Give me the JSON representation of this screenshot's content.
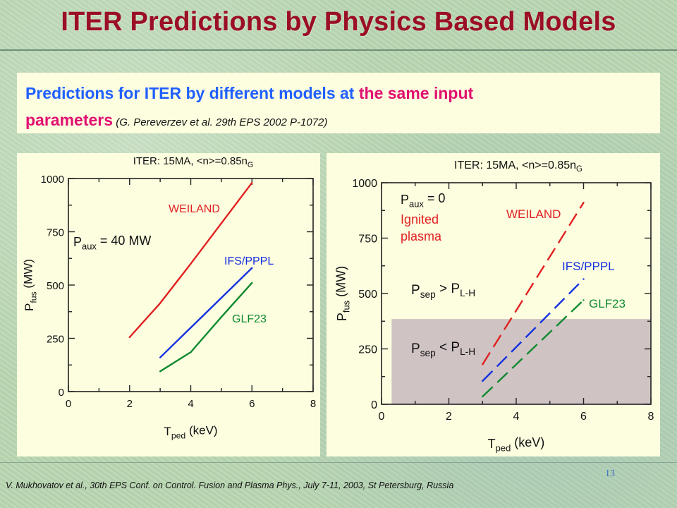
{
  "slide": {
    "title": "ITER Predictions by Physics Based Models",
    "subtitle": {
      "part1": "Predictions for ITER by different models at ",
      "part2": "the same input",
      "part3": "parameters",
      "reference": " (G. Pereverzev et al. 29th EPS 2002 P-1072)"
    },
    "page_number": "13",
    "footer": "V. Mukhovatov et al., 30th EPS Conf. on Control. Fusion and Plasma Phys., July 7-11, 2003, St Petersburg, Russia"
  },
  "chart_data": [
    {
      "type": "line",
      "title": "ITER: 15MA, <n>=0.85n_G",
      "xlabel": "T_ped (keV)",
      "ylabel": "P_fus (MW)",
      "xlim": [
        0,
        8
      ],
      "ylim": [
        0,
        1000
      ],
      "xticks": [
        "0",
        "2",
        "4",
        "6",
        "8"
      ],
      "yticks": [
        "0",
        "250",
        "500",
        "750",
        "1000"
      ],
      "annotations": [
        "P_aux = 40 MW"
      ],
      "series": [
        {
          "name": "WEILAND",
          "color": "#e02020",
          "dashed": false,
          "x": [
            2,
            3,
            4,
            5,
            6
          ],
          "y": [
            255,
            415,
            600,
            790,
            980
          ]
        },
        {
          "name": "IFS/PPPL",
          "color": "#1530e0",
          "dashed": false,
          "x": [
            3,
            4,
            5,
            6
          ],
          "y": [
            160,
            300,
            440,
            580
          ]
        },
        {
          "name": "GLF23",
          "color": "#108a30",
          "dashed": false,
          "x": [
            3,
            4,
            5,
            6
          ],
          "y": [
            95,
            185,
            350,
            510
          ]
        }
      ]
    },
    {
      "type": "line",
      "title": "ITER: 15MA, <n>=0.85n_G",
      "xlabel": "T_ped (keV)",
      "ylabel": "P_fus (MW)",
      "xlim": [
        0,
        8
      ],
      "ylim": [
        0,
        1000
      ],
      "xticks": [
        "0",
        "2",
        "4",
        "6",
        "8"
      ],
      "yticks": [
        "0",
        "250",
        "500",
        "750",
        "1000"
      ],
      "annotations": [
        "P_aux = 0",
        "Ignited",
        "plasma",
        "P_sep > P_L-H",
        "P_sep < P_L-H"
      ],
      "shaded_region": {
        "label": "P_sep < P_L-H",
        "x": [
          0.3,
          8
        ],
        "y": [
          0,
          385
        ],
        "color": "#cfc3c3"
      },
      "series": [
        {
          "name": "WEILAND",
          "color": "#e02020",
          "dashed": true,
          "x": [
            3,
            6
          ],
          "y": [
            180,
            910
          ]
        },
        {
          "name": "IFS/PPPL",
          "color": "#1530e0",
          "dashed": true,
          "x": [
            3,
            6
          ],
          "y": [
            105,
            565
          ]
        },
        {
          "name": "GLF23",
          "color": "#108a30",
          "dashed": true,
          "x": [
            3,
            6
          ],
          "y": [
            35,
            470
          ]
        }
      ]
    }
  ]
}
